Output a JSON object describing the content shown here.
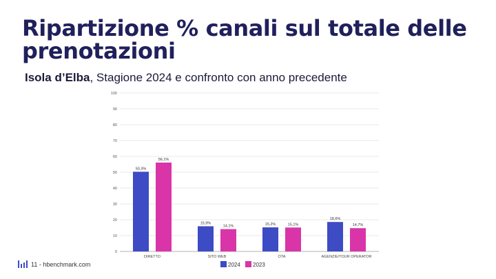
{
  "title": "Ripartizione % canali sul totale delle prenotazioni",
  "subtitle": {
    "bold": "Isola d’Elba",
    "rest": ", Stagione 2024 e confronto con anno precedente"
  },
  "footer": {
    "page": "11 - hbenchmark.com",
    "logo_icon": "bars-logo-icon"
  },
  "colors": {
    "s2024": "#3d4bc4",
    "s2023": "#d935a8",
    "title": "#20205c",
    "grid": "#e3e3e3"
  },
  "chart_data": {
    "type": "bar",
    "categories": [
      "DIRETTO",
      "SITO WEB",
      "OTA",
      "AGENZIE/TOUR OPERATOR"
    ],
    "series": [
      {
        "name": "2024",
        "values": [
          50.3,
          15.9,
          15.2,
          18.6
        ],
        "labels": [
          "50,3%",
          "15,9%",
          "15,2%",
          "18,6%"
        ]
      },
      {
        "name": "2023",
        "values": [
          56.1,
          14.1,
          15.1,
          14.7
        ],
        "labels": [
          "56,1%",
          "14,1%",
          "15,1%",
          "14,7%"
        ]
      }
    ],
    "ylim": [
      0,
      100
    ],
    "yticks": [
      "0",
      "10",
      "20",
      "30",
      "40",
      "50",
      "60",
      "70",
      "80",
      "90",
      "100"
    ],
    "legend": "bottom",
    "grid": true
  }
}
